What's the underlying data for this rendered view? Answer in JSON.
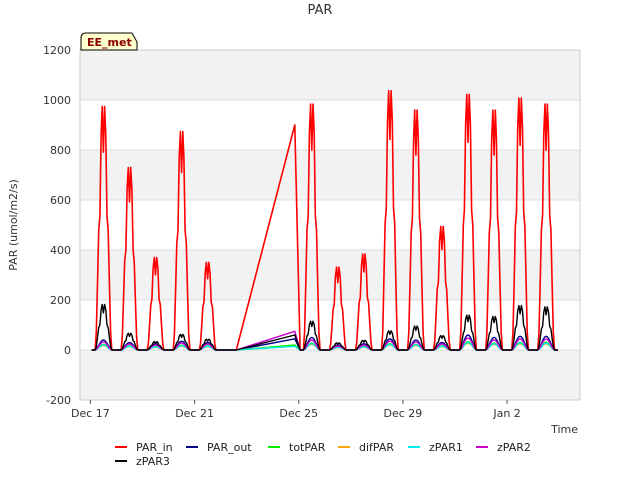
{
  "chart_data": {
    "type": "line",
    "title": "PAR",
    "xlabel": "Time",
    "ylabel": "PAR (umol/m2/s)",
    "badge": "EE_met",
    "ylim": [
      -200,
      1200
    ],
    "xlim": [
      0,
      18
    ],
    "yticks": [
      -200,
      0,
      200,
      400,
      600,
      800,
      1000,
      1200
    ],
    "xticks": [
      {
        "value": 0,
        "label": "Dec 17"
      },
      {
        "value": 4,
        "label": "Dec 21"
      },
      {
        "value": 8,
        "label": "Dec 25"
      },
      {
        "value": 12,
        "label": "Dec 29"
      },
      {
        "value": 16,
        "label": "Jan 2"
      }
    ],
    "grid": true,
    "legend_position": "bottom",
    "day_peaks": [
      {
        "day": 0,
        "par_in": 1015,
        "par_out": 40,
        "zpar3": 190
      },
      {
        "day": 1,
        "par_in": 760,
        "par_out": 30,
        "zpar3": 70
      },
      {
        "day": 2,
        "par_in": 385,
        "par_out": 25,
        "zpar3": 35
      },
      {
        "day": 3,
        "par_in": 910,
        "par_out": 35,
        "zpar3": 65
      },
      {
        "day": 4,
        "par_in": 365,
        "par_out": 30,
        "zpar3": 45
      },
      {
        "day": 8,
        "par_in": 1025,
        "par_out": 50,
        "zpar3": 120
      },
      {
        "day": 9,
        "par_in": 345,
        "par_out": 20,
        "zpar3": 30
      },
      {
        "day": 10,
        "par_in": 400,
        "par_out": 25,
        "zpar3": 40
      },
      {
        "day": 11,
        "par_in": 1080,
        "par_out": 45,
        "zpar3": 80
      },
      {
        "day": 12,
        "par_in": 1000,
        "par_out": 40,
        "zpar3": 100
      },
      {
        "day": 13,
        "par_in": 515,
        "par_out": 30,
        "zpar3": 60
      },
      {
        "day": 14,
        "par_in": 1065,
        "par_out": 60,
        "zpar3": 145
      },
      {
        "day": 15,
        "par_in": 1000,
        "par_out": 50,
        "zpar3": 140
      },
      {
        "day": 16,
        "par_in": 1050,
        "par_out": 55,
        "zpar3": 185
      },
      {
        "day": 17,
        "par_in": 1025,
        "par_out": 55,
        "zpar3": 180
      }
    ],
    "gap_segment": {
      "start_day": 5.6,
      "end_day": 7.85
    },
    "series": [
      {
        "name": "PAR_in",
        "color": "#ff0000",
        "scale_from": "par_in"
      },
      {
        "name": "PAR_out",
        "color": "#00008b",
        "scale_from": "par_out"
      },
      {
        "name": "totPAR",
        "color": "#00ee00",
        "scale_from": "par_out",
        "factor": 0.55
      },
      {
        "name": "difPAR",
        "color": "#ffa500",
        "scale_from": "par_out",
        "factor": 0.45
      },
      {
        "name": "zPAR1",
        "color": "#00eeee",
        "scale_from": "par_out",
        "factor": 0.5
      },
      {
        "name": "zPAR2",
        "color": "#cc00cc",
        "scale_from": "par_out",
        "factor": 0.8
      },
      {
        "name": "zPAR3",
        "color": "#000000",
        "scale_from": "zpar3"
      }
    ],
    "gap_end_values": {
      "PAR_in": 900,
      "PAR_out": 45,
      "totPAR": 20,
      "difPAR": 15,
      "zPAR1": 15,
      "zPAR2": 75,
      "zPAR3": 60
    }
  }
}
